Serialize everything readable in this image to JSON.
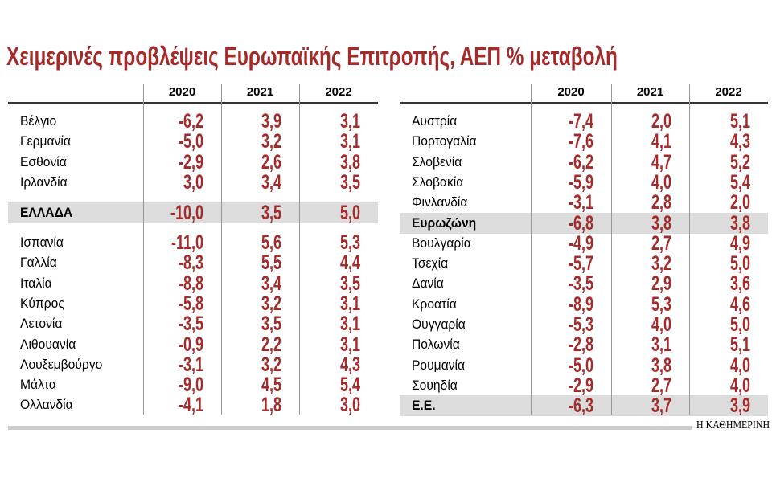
{
  "title": "Χειμερινές προβλέψεις Ευρωπαϊκής Επιτροπής, ΑΕΠ % μεταβολή",
  "left_table": {
    "headers": [
      "2020",
      "2021",
      "2022"
    ],
    "rows": [
      {
        "label": "Βέλγιο",
        "values": [
          "-6,2",
          "3,9",
          "3,1"
        ]
      },
      {
        "label": "Γερμανία",
        "values": [
          "-5,0",
          "3,2",
          "3,1"
        ]
      },
      {
        "label": "Εσθονία",
        "values": [
          "-2,9",
          "2,6",
          "3,8"
        ]
      },
      {
        "label": "Ιρλανδία",
        "values": [
          "3,0",
          "3,4",
          "3,5"
        ]
      },
      {
        "label": "ΕΛΛΑΔΑ",
        "values": [
          "-10,0",
          "3,5",
          "5,0"
        ]
      },
      {
        "label": "Ισπανία",
        "values": [
          "-11,0",
          "5,6",
          "5,3"
        ]
      },
      {
        "label": "Γαλλία",
        "values": [
          "-8,3",
          "5,5",
          "4,4"
        ]
      },
      {
        "label": "Ιταλία",
        "values": [
          "-8,8",
          "3,4",
          "3,5"
        ]
      },
      {
        "label": "Κύπρος",
        "values": [
          "-5,8",
          "3,2",
          "3,1"
        ]
      },
      {
        "label": "Λετονία",
        "values": [
          "-3,5",
          "3,5",
          "3,1"
        ]
      },
      {
        "label": "Λιθουανία",
        "values": [
          "-0,9",
          "2,2",
          "3,1"
        ]
      },
      {
        "label": "Λουξεμβούργο",
        "values": [
          "-3,1",
          "3,2",
          "4,3"
        ]
      },
      {
        "label": "Μάλτα",
        "values": [
          "-9,0",
          "4,5",
          "5,4"
        ]
      },
      {
        "label": "Ολλανδία",
        "values": [
          "-4,1",
          "1,8",
          "3,0"
        ]
      }
    ]
  },
  "right_table": {
    "headers": [
      "2020",
      "2021",
      "2022"
    ],
    "rows": [
      {
        "label": "Αυστρία",
        "values": [
          "-7,4",
          "2,0",
          "5,1"
        ]
      },
      {
        "label": "Πορτογαλία",
        "values": [
          "-7,6",
          "4,1",
          "4,3"
        ]
      },
      {
        "label": "Σλοβενία",
        "values": [
          "-6,2",
          "4,7",
          "5,2"
        ]
      },
      {
        "label": "Σλοβακία",
        "values": [
          "-5,9",
          "4,0",
          "5,4"
        ]
      },
      {
        "label": "Φινλανδία",
        "values": [
          "-3,1",
          "2,8",
          "2,0"
        ]
      },
      {
        "label": "Ευρωζώνη",
        "values": [
          "-6,8",
          "3,8",
          "3,8"
        ]
      },
      {
        "label": "Βουλγαρία",
        "values": [
          "-4,9",
          "2,7",
          "4,9"
        ]
      },
      {
        "label": "Τσεχία",
        "values": [
          "-5,7",
          "3,2",
          "5,0"
        ]
      },
      {
        "label": "Δανία",
        "values": [
          "-3,5",
          "2,9",
          "3,6"
        ]
      },
      {
        "label": "Κροατία",
        "values": [
          "-8,9",
          "5,3",
          "4,6"
        ]
      },
      {
        "label": "Ουγγαρία",
        "values": [
          "-5,3",
          "4,0",
          "5,0"
        ]
      },
      {
        "label": "Πολωνία",
        "values": [
          "-2,8",
          "3,1",
          "5,1"
        ]
      },
      {
        "label": "Ρουμανία",
        "values": [
          "-5,0",
          "3,8",
          "4,0"
        ]
      },
      {
        "label": "Σουηδία",
        "values": [
          "-2,9",
          "2,7",
          "4,0"
        ]
      },
      {
        "label": "Ε.Ε.",
        "values": [
          "-6,3",
          "3,7",
          "3,9"
        ]
      }
    ]
  },
  "footer": {
    "credit": "Η ΚΑΘΗΜΕΡΙΝΗ"
  }
}
